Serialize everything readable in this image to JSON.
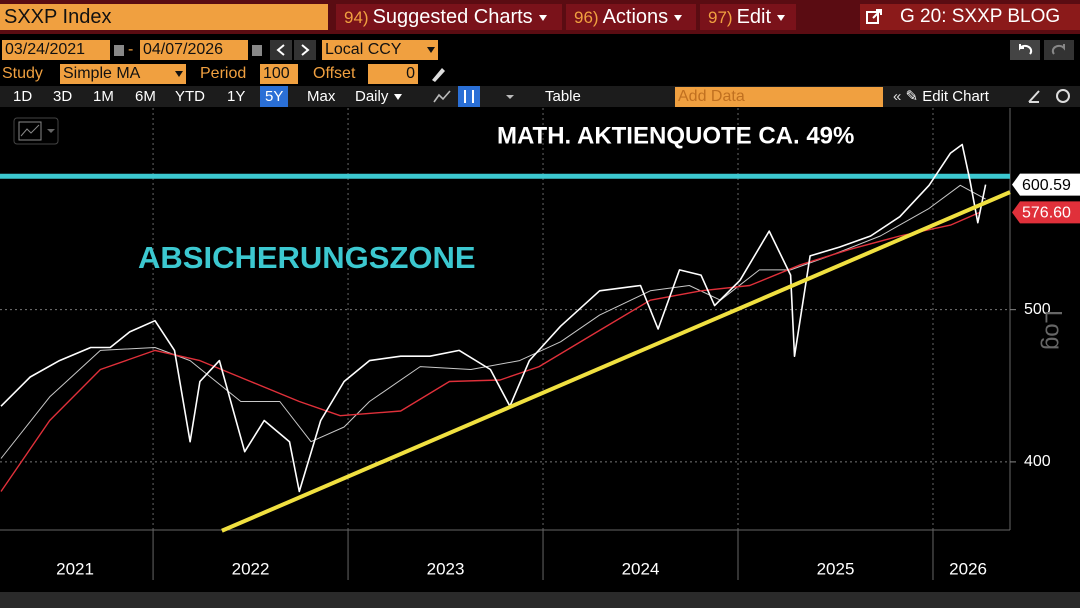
{
  "toolbar": {
    "security": "SXXP Index",
    "menu": [
      {
        "num": "94)",
        "label": "Suggested Charts"
      },
      {
        "num": "96)",
        "label": "Actions"
      },
      {
        "num": "97)",
        "label": "Edit"
      }
    ],
    "blog": "G 20: SXXP BLOG"
  },
  "range": {
    "start": "03/24/2021",
    "sep": "-",
    "end": "04/07/2026",
    "currency": "Local CCY"
  },
  "study": {
    "label": "Study",
    "type": "Simple MA",
    "period_label": "Period",
    "period": 100,
    "offset_label": "Offset",
    "offset": 0
  },
  "periods": [
    "1D",
    "3D",
    "1M",
    "6M",
    "YTD",
    "1Y",
    "5Y",
    "Max"
  ],
  "active_period_index": 6,
  "frequency": "Daily",
  "table": "Table",
  "add_data": "Add Data",
  "edit_chart": "Edit Chart",
  "chart_data": {
    "type": "line",
    "log_scale": true,
    "grid": true,
    "y_axis_label": "Log",
    "annotations": [
      {
        "text": "MATH. AKTIENQUOTE CA. 49%",
        "color": "#ffffff"
      },
      {
        "text": "ABSICHERUNGSZONE",
        "color": "#3cc8d0"
      }
    ],
    "xlim": [
      2021.215,
      2026.395
    ],
    "xticks": [
      {
        "value": 2021.6,
        "label": "2021"
      },
      {
        "value": 2022.5,
        "label": "2022"
      },
      {
        "value": 2023.5,
        "label": "2023"
      },
      {
        "value": 2024.5,
        "label": "2024"
      },
      {
        "value": 2025.5,
        "label": "2025"
      },
      {
        "value": 2026.18,
        "label": "2026"
      }
    ],
    "xgrid": [
      2022,
      2023,
      2024,
      2025,
      2026
    ],
    "ylim": [
      362,
      670
    ],
    "yticks": [
      400,
      500
    ],
    "series": [
      {
        "color": "#ffffff",
        "width": 1.6,
        "x": [
          2021.22,
          2021.37,
          2021.52,
          2021.68,
          2021.78,
          2021.88,
          2022.01,
          2022.11,
          2022.19,
          2022.24,
          2022.34,
          2022.47,
          2022.57,
          2022.7,
          2022.75,
          2022.86,
          2022.98,
          2023.11,
          2023.27,
          2023.42,
          2023.57,
          2023.73,
          2023.83,
          2023.93,
          2024.09,
          2024.29,
          2024.5,
          2024.59,
          2024.7,
          2024.81,
          2024.88,
          2025.01,
          2025.16,
          2025.27,
          2025.29,
          2025.37,
          2025.52,
          2025.68,
          2025.83,
          2025.98,
          2026.09,
          2026.15,
          2026.19,
          2026.23,
          2026.27
        ],
        "values": [
          434,
          453,
          464,
          473,
          473,
          484,
          492,
          471,
          412,
          450,
          464,
          406,
          425,
          412,
          383,
          425,
          450,
          464,
          467,
          467,
          471,
          458,
          434,
          464,
          488,
          514,
          518,
          486,
          530,
          526,
          503,
          522,
          561,
          526,
          467,
          541,
          548,
          557,
          573,
          600,
          629,
          637,
          604,
          568,
          600.59
        ]
      },
      {
        "color": "#e0303a",
        "width": 1.4,
        "x": [
          2021.22,
          2021.47,
          2021.73,
          2022.01,
          2022.24,
          2022.5,
          2022.75,
          2022.96,
          2023.27,
          2023.52,
          2023.78,
          2023.98,
          2024.29,
          2024.55,
          2024.81,
          2025.06,
          2025.32,
          2025.57,
          2025.83,
          2026.09,
          2026.24
        ],
        "values": [
          383,
          425,
          458,
          471,
          464,
          450,
          437,
          428,
          431,
          450,
          451,
          460,
          485,
          507,
          514,
          518,
          534,
          546,
          557,
          566,
          576.6
        ]
      },
      {
        "color": "#c8c8c8",
        "width": 1,
        "x": [
          2021.22,
          2021.47,
          2021.73,
          2022.01,
          2022.19,
          2022.45,
          2022.65,
          2022.81,
          2022.98,
          2023.11,
          2023.37,
          2023.63,
          2023.88,
          2024.09,
          2024.29,
          2024.55,
          2024.75,
          2024.91,
          2025.11,
          2025.27,
          2025.47,
          2025.73,
          2025.98,
          2026.14,
          2026.27
        ],
        "values": [
          402,
          440,
          471,
          473,
          464,
          437,
          437,
          412,
          421,
          437,
          460,
          458,
          464,
          477,
          496,
          514,
          518,
          507,
          530,
          530,
          541,
          557,
          580,
          600,
          588
        ]
      }
    ],
    "hline": {
      "value": 608,
      "color": "#3cc8d0"
    },
    "trendline": {
      "x": [
        2022.353,
        2026.395
      ],
      "y": [
        361.6,
        594
      ],
      "color": "#f0e040"
    },
    "last_value_tags": [
      {
        "value": 600.59,
        "label": "600.59",
        "color": "#ffffff",
        "text_color": "#000000"
      },
      {
        "value": 576.6,
        "label": "576.60",
        "color": "#e0303a",
        "text_color": "#ffffff"
      }
    ]
  }
}
